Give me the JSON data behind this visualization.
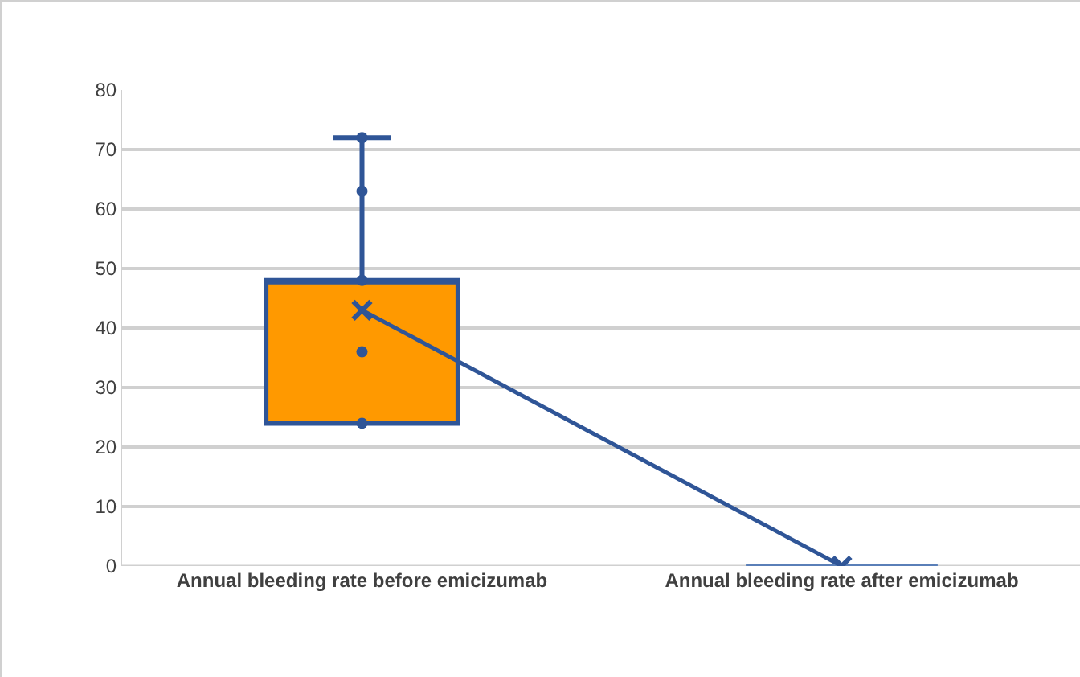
{
  "chart_data": {
    "type": "box",
    "categories": [
      "Annual bleeding rate before emicizumab",
      "Annual bleeding rate after emicizumab"
    ],
    "boxes": [
      {
        "low": 24,
        "q1": 24,
        "median": 48,
        "q3": 48,
        "high": 72,
        "mean": 43
      },
      {
        "low": 0,
        "q1": 0,
        "median": 0,
        "q3": 0,
        "high": 0,
        "mean": 0
      }
    ],
    "colors": [
      "#ff9900",
      "#5a7fb8"
    ],
    "series": [
      {
        "type": "line",
        "color": "#2f5597",
        "marker": "none",
        "values": [
          43,
          0
        ]
      },
      {
        "type": "scatter",
        "color": "#2f5597",
        "marker": "circle",
        "x": [
          "Annual bleeding rate before emicizumab",
          "Annual bleeding rate before emicizumab",
          "Annual bleeding rate before emicizumab",
          "Annual bleeding rate before emicizumab",
          "Annual bleeding rate before emicizumab"
        ],
        "values": [
          24,
          36,
          48,
          63,
          72
        ]
      }
    ],
    "ylim": [
      0,
      80
    ],
    "yticks": [
      0,
      10,
      20,
      30,
      40,
      50,
      60,
      70,
      80
    ],
    "grid": "y"
  }
}
